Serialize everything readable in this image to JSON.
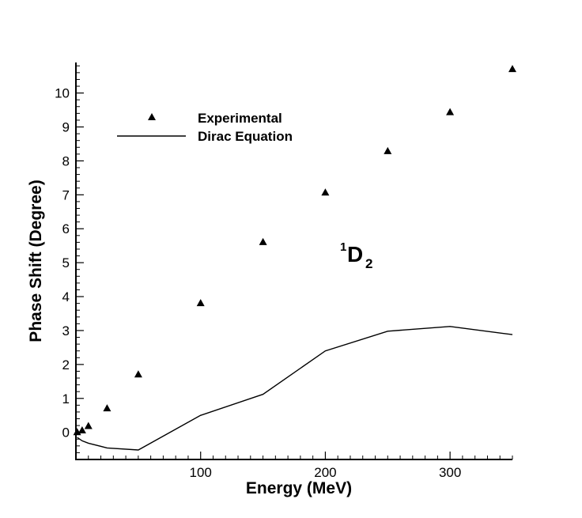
{
  "chart_data": {
    "type": "line",
    "title": "",
    "xlabel": "Energy (MeV)",
    "ylabel": "Phase Shift (Degree)",
    "xlim": [
      0,
      350
    ],
    "ylim": [
      -0.8,
      10.9
    ],
    "x_ticks": [
      100,
      200,
      300
    ],
    "y_ticks": [
      0,
      1,
      2,
      3,
      4,
      5,
      6,
      7,
      8,
      9,
      10
    ],
    "grid": false,
    "legend_position": "top-left",
    "series": [
      {
        "name": "Experimental",
        "style": "triangle-markers",
        "color": "#000000",
        "x": [
          1,
          5,
          10,
          25,
          50,
          100,
          150,
          200,
          250,
          300,
          350
        ],
        "y": [
          0.0,
          0.05,
          0.18,
          0.7,
          1.7,
          3.8,
          5.6,
          7.06,
          8.28,
          9.43,
          10.7
        ]
      },
      {
        "name": "Dirac Equation",
        "style": "line",
        "color": "#000000",
        "x": [
          1,
          5,
          10,
          25,
          50,
          100,
          150,
          200,
          250,
          300,
          350
        ],
        "y": [
          -0.15,
          -0.25,
          -0.32,
          -0.46,
          -0.52,
          0.5,
          1.12,
          2.4,
          2.98,
          3.12,
          2.88
        ]
      }
    ],
    "annotation": {
      "superscript": "1",
      "main": "D",
      "subscript": "2"
    }
  }
}
